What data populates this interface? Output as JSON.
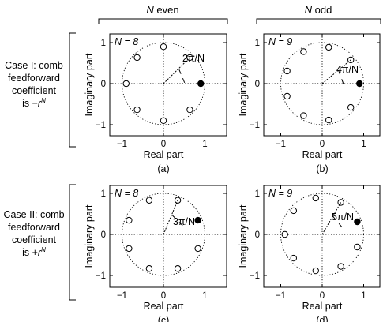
{
  "columns": [
    {
      "n": "N",
      "label": " even"
    },
    {
      "n": "N",
      "label": " odd"
    }
  ],
  "rows": [
    {
      "lines": [
        "Case I: comb",
        "feedforward",
        "coefficient"
      ],
      "last_prefix": "is −",
      "last_sup": "N"
    },
    {
      "lines": [
        "Case II: comb",
        "feedforward",
        "coefficient"
      ],
      "last_prefix": "is +",
      "last_sup": "N"
    }
  ],
  "common": {
    "xlabel": "Real part",
    "ylabel": "Imaginary part",
    "xticks": [
      "−1",
      "0",
      "1"
    ],
    "yticks": [
      "1",
      "0",
      "−1"
    ],
    "r_letter": "r"
  },
  "panels": [
    {
      "id": "a",
      "caption": "(a)",
      "n_label": "N = 8",
      "angle_label": "2π/N",
      "N": 8,
      "offset_deg": 0,
      "filled_deg": 0
    },
    {
      "id": "b",
      "caption": "(b)",
      "n_label": "N = 9",
      "angle_label": "4π/N",
      "N": 9,
      "offset_deg": 0,
      "filled_deg": 0
    },
    {
      "id": "c",
      "caption": "(c)",
      "n_label": "N = 8",
      "angle_label": "3π/N",
      "N": 8,
      "offset_deg": 22.5,
      "filled_deg": 22.5
    },
    {
      "id": "d",
      "caption": "(d)",
      "n_label": "N = 9",
      "angle_label": "5π/N",
      "N": 9,
      "offset_deg": 20,
      "filled_deg": 20
    }
  ]
}
